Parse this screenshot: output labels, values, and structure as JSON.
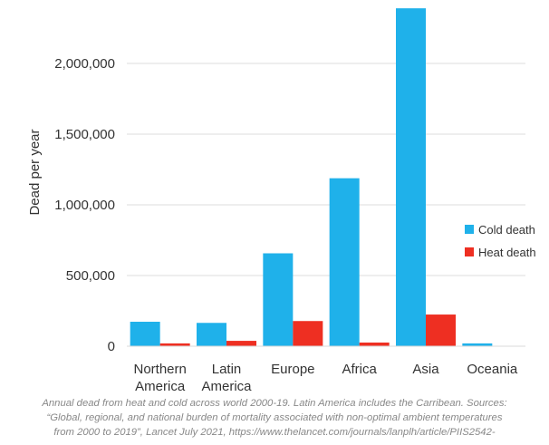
{
  "chart_data": {
    "type": "bar",
    "title": "",
    "xlabel": "",
    "ylabel": "Dead per year",
    "ylim": [
      0,
      2400000
    ],
    "yticks": [
      0,
      500000,
      1000000,
      1500000,
      2000000
    ],
    "ytick_labels": [
      "0",
      "500,000",
      "1,000,000",
      "1,500,000",
      "2,000,000"
    ],
    "categories": [
      "Northern America",
      "Latin America",
      "Europe",
      "Africa",
      "Asia",
      "Oceania"
    ],
    "category_lines": [
      [
        "Northern",
        "America"
      ],
      [
        "Latin",
        "America"
      ],
      [
        "Europe"
      ],
      [
        "Africa"
      ],
      [
        "Asia"
      ],
      [
        "Oceania"
      ]
    ],
    "series": [
      {
        "name": "Cold death",
        "color": "#1fb1ea",
        "values": [
          173000,
          165000,
          657000,
          1188000,
          2390000,
          20000
        ]
      },
      {
        "name": "Heat death",
        "color": "#ee2f22",
        "values": [
          20000,
          38000,
          178000,
          26000,
          224000,
          1000
        ]
      }
    ],
    "grid": true,
    "legend": "right"
  },
  "caption": {
    "lines": [
      "Annual dead from heat and cold across world 2000-19. Latin America includes the Carribean. Sources:",
      "“Global, regional, and national burden of mortality associated with non-optimal ambient temperatures",
      "from 2000 to 2019”, Lancet July 2021, https://www.thelancet.com/journals/lanplh/article/PIIS2542-"
    ]
  }
}
